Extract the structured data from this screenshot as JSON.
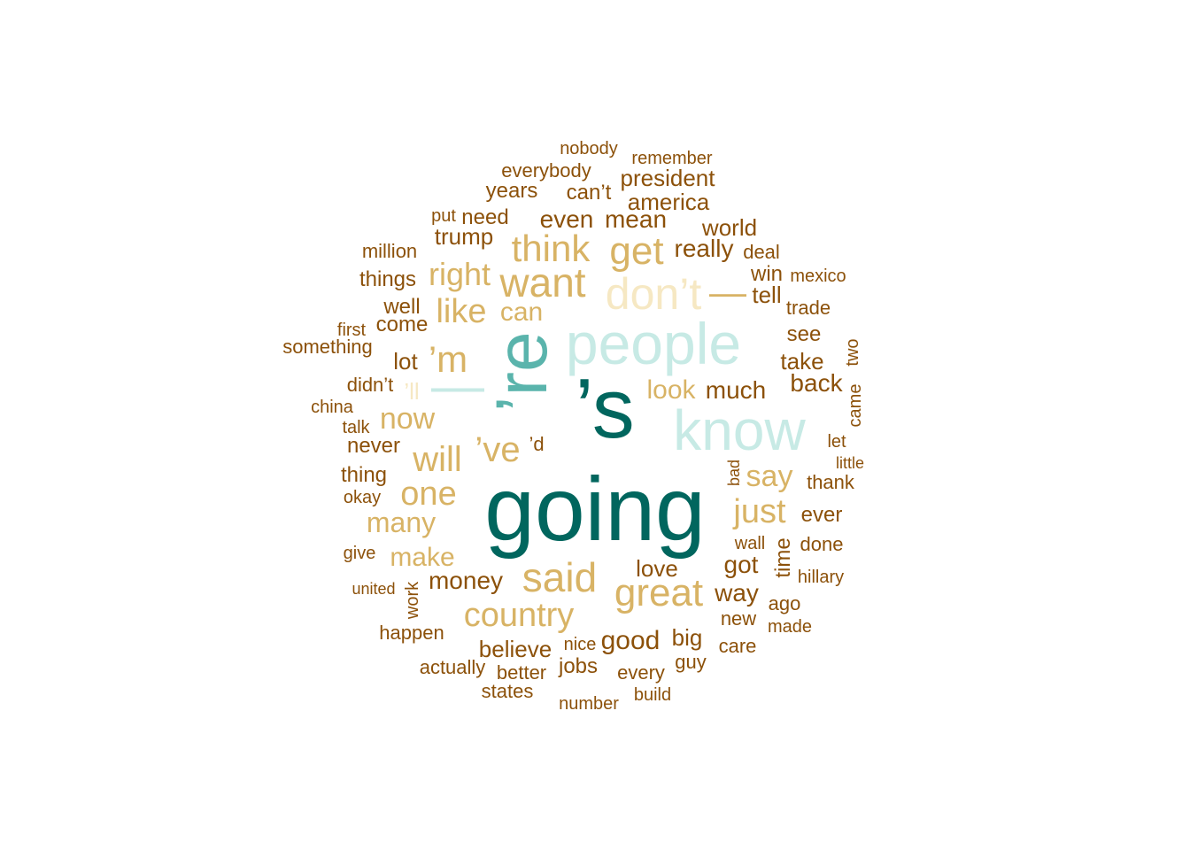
{
  "palette": {
    "c1": "#8C510A",
    "c2": "#D8B365",
    "c3": "#F6E8C3",
    "c4": "#C7EAE5",
    "c5": "#5AB4AC",
    "c6": "#01665E"
  },
  "words": [
    {
      "text": "going",
      "color": "c6"
    },
    {
      "text": "’s",
      "color": "c6"
    },
    {
      "text": "’re",
      "color": "c5"
    },
    {
      "text": "—",
      "color": "c4"
    },
    {
      "text": "people",
      "color": "c4"
    },
    {
      "text": "know",
      "color": "c4"
    },
    {
      "text": "don’t",
      "color": "c3"
    },
    {
      "text": "—",
      "color": "c2"
    },
    {
      "text": "think",
      "color": "c2"
    },
    {
      "text": "get",
      "color": "c2"
    },
    {
      "text": "want",
      "color": "c2"
    },
    {
      "text": "right",
      "color": "c2"
    },
    {
      "text": "like",
      "color": "c2"
    },
    {
      "text": "can",
      "color": "c2"
    },
    {
      "text": "’m",
      "color": "c2"
    },
    {
      "text": "now",
      "color": "c2"
    },
    {
      "text": "’ll",
      "color": "c3"
    },
    {
      "text": "will",
      "color": "c2"
    },
    {
      "text": "’ve",
      "color": "c2"
    },
    {
      "text": "’d",
      "color": "c1"
    },
    {
      "text": "one",
      "color": "c2"
    },
    {
      "text": "many",
      "color": "c2"
    },
    {
      "text": "make",
      "color": "c2"
    },
    {
      "text": "said",
      "color": "c2"
    },
    {
      "text": "great",
      "color": "c2"
    },
    {
      "text": "country",
      "color": "c2"
    },
    {
      "text": "just",
      "color": "c2"
    },
    {
      "text": "say",
      "color": "c2"
    },
    {
      "text": "look",
      "color": "c2"
    },
    {
      "text": "much",
      "color": "c1"
    },
    {
      "text": "nobody",
      "color": "c1"
    },
    {
      "text": "remember",
      "color": "c1"
    },
    {
      "text": "everybody",
      "color": "c1"
    },
    {
      "text": "president",
      "color": "c1"
    },
    {
      "text": "years",
      "color": "c1"
    },
    {
      "text": "can’t",
      "color": "c1"
    },
    {
      "text": "america",
      "color": "c1"
    },
    {
      "text": "put",
      "color": "c1"
    },
    {
      "text": "need",
      "color": "c1"
    },
    {
      "text": "even",
      "color": "c1"
    },
    {
      "text": "mean",
      "color": "c1"
    },
    {
      "text": "world",
      "color": "c1"
    },
    {
      "text": "trump",
      "color": "c1"
    },
    {
      "text": "million",
      "color": "c1"
    },
    {
      "text": "really",
      "color": "c1"
    },
    {
      "text": "deal",
      "color": "c1"
    },
    {
      "text": "things",
      "color": "c1"
    },
    {
      "text": "win",
      "color": "c1"
    },
    {
      "text": "mexico",
      "color": "c1"
    },
    {
      "text": "tell",
      "color": "c1"
    },
    {
      "text": "well",
      "color": "c1"
    },
    {
      "text": "trade",
      "color": "c1"
    },
    {
      "text": "first",
      "color": "c1"
    },
    {
      "text": "come",
      "color": "c1"
    },
    {
      "text": "something",
      "color": "c1"
    },
    {
      "text": "see",
      "color": "c1"
    },
    {
      "text": "lot",
      "color": "c1"
    },
    {
      "text": "take",
      "color": "c1"
    },
    {
      "text": "two",
      "color": "c1"
    },
    {
      "text": "didn’t",
      "color": "c1"
    },
    {
      "text": "back",
      "color": "c1"
    },
    {
      "text": "china",
      "color": "c1"
    },
    {
      "text": "came",
      "color": "c1"
    },
    {
      "text": "talk",
      "color": "c1"
    },
    {
      "text": "never",
      "color": "c1"
    },
    {
      "text": "let",
      "color": "c1"
    },
    {
      "text": "little",
      "color": "c1"
    },
    {
      "text": "thing",
      "color": "c1"
    },
    {
      "text": "bad",
      "color": "c1"
    },
    {
      "text": "thank",
      "color": "c1"
    },
    {
      "text": "okay",
      "color": "c1"
    },
    {
      "text": "ever",
      "color": "c1"
    },
    {
      "text": "wall",
      "color": "c1"
    },
    {
      "text": "done",
      "color": "c1"
    },
    {
      "text": "time",
      "color": "c1"
    },
    {
      "text": "give",
      "color": "c1"
    },
    {
      "text": "got",
      "color": "c1"
    },
    {
      "text": "love",
      "color": "c1"
    },
    {
      "text": "money",
      "color": "c1"
    },
    {
      "text": "hillary",
      "color": "c1"
    },
    {
      "text": "united",
      "color": "c1"
    },
    {
      "text": "work",
      "color": "c1"
    },
    {
      "text": "way",
      "color": "c1"
    },
    {
      "text": "ago",
      "color": "c1"
    },
    {
      "text": "new",
      "color": "c1"
    },
    {
      "text": "made",
      "color": "c1"
    },
    {
      "text": "happen",
      "color": "c1"
    },
    {
      "text": "believe",
      "color": "c1"
    },
    {
      "text": "nice",
      "color": "c1"
    },
    {
      "text": "good",
      "color": "c1"
    },
    {
      "text": "big",
      "color": "c1"
    },
    {
      "text": "care",
      "color": "c1"
    },
    {
      "text": "actually",
      "color": "c1"
    },
    {
      "text": "better",
      "color": "c1"
    },
    {
      "text": "jobs",
      "color": "c1"
    },
    {
      "text": "every",
      "color": "c1"
    },
    {
      "text": "guy",
      "color": "c1"
    },
    {
      "text": "states",
      "color": "c1"
    },
    {
      "text": "number",
      "color": "c1"
    },
    {
      "text": "build",
      "color": "c1"
    }
  ]
}
